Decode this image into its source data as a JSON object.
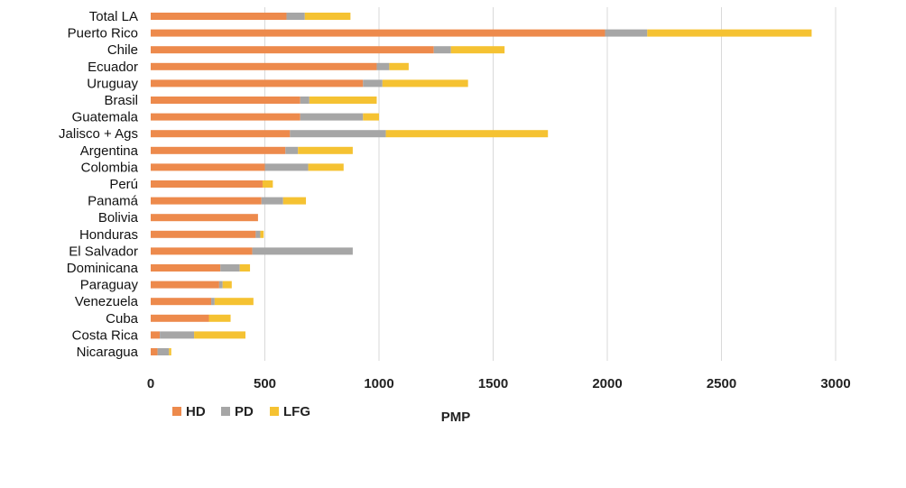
{
  "chart_data": {
    "type": "bar",
    "orientation": "horizontal",
    "stacked": true,
    "categories": [
      "Total LA",
      "Puerto Rico",
      "Chile",
      "Ecuador",
      "Uruguay",
      "Brasil",
      "Guatemala",
      "Jalisco + Ags",
      "Argentina",
      "Colombia",
      "Perú",
      "Panamá",
      "Bolivia",
      "Honduras",
      "El Salvador",
      "Dominicana",
      "Paraguay",
      "Venezuela",
      "Cuba",
      "Costa Rica",
      "Nicaragua"
    ],
    "series": [
      {
        "name": "HD",
        "color": "#ed8a4c",
        "values": [
          595,
          1990,
          1240,
          990,
          930,
          655,
          655,
          610,
          590,
          500,
          490,
          485,
          470,
          460,
          445,
          305,
          300,
          265,
          255,
          40,
          30
        ]
      },
      {
        "name": "PD",
        "color": "#a6a6a6",
        "values": [
          80,
          185,
          75,
          55,
          85,
          40,
          275,
          420,
          55,
          190,
          0,
          95,
          0,
          20,
          440,
          85,
          15,
          15,
          0,
          150,
          50
        ]
      },
      {
        "name": "LFG",
        "color": "#f5c232",
        "values": [
          200,
          720,
          235,
          85,
          375,
          295,
          70,
          710,
          240,
          155,
          45,
          100,
          0,
          15,
          0,
          45,
          40,
          170,
          95,
          225,
          10
        ]
      }
    ],
    "xlabel": "PMP",
    "ylabel": "",
    "xlim": [
      0,
      3000
    ],
    "xticks": [
      0,
      500,
      1000,
      1500,
      2000,
      2500,
      3000
    ],
    "grid": true,
    "legend": "bottom-left"
  }
}
